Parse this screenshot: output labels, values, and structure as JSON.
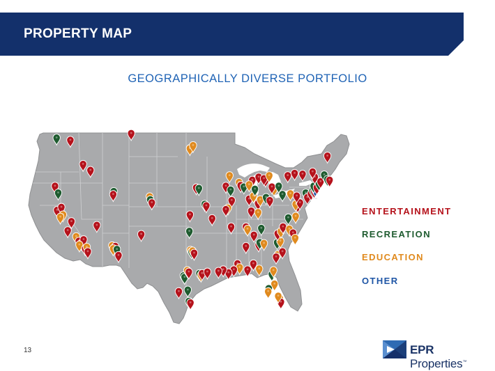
{
  "header": {
    "title": "PROPERTY MAP",
    "bar_color": "#13306b"
  },
  "subtitle": "GEOGRAPHICALLY DIVERSE PORTFOLIO",
  "legend": [
    {
      "label": "ENTERTAINMENT",
      "color": "#b5121b"
    },
    {
      "label": "RECREATION",
      "color": "#1e5b2f"
    },
    {
      "label": "EDUCATION",
      "color": "#e08a1e"
    },
    {
      "label": "OTHER",
      "color": "#1f56a6"
    }
  ],
  "footer": {
    "page_number": "13",
    "logo_brand": "EPR",
    "logo_name": " Properties",
    "logo_tm": "™"
  },
  "map": {
    "land_color": "#a9aaac",
    "pins": [
      {
        "category": "recreation",
        "lon": -122.6,
        "lat": 47.9
      },
      {
        "category": "entertainment",
        "lon": -120.0,
        "lat": 47.6
      },
      {
        "category": "entertainment",
        "lon": -108.5,
        "lat": 48.5
      },
      {
        "category": "entertainment",
        "lon": -117.6,
        "lat": 44.4
      },
      {
        "category": "entertainment",
        "lon": -116.2,
        "lat": 43.6
      },
      {
        "category": "entertainment",
        "lon": -122.9,
        "lat": 41.5
      },
      {
        "category": "recreation",
        "lon": -122.3,
        "lat": 40.6
      },
      {
        "category": "entertainment",
        "lon": -122.5,
        "lat": 38.3
      },
      {
        "category": "entertainment",
        "lon": -121.7,
        "lat": 38.7
      },
      {
        "category": "education",
        "lon": -121.4,
        "lat": 37.7
      },
      {
        "category": "education",
        "lon": -121.9,
        "lat": 37.4
      },
      {
        "category": "entertainment",
        "lon": -119.8,
        "lat": 36.8
      },
      {
        "category": "entertainment",
        "lon": -120.5,
        "lat": 35.6
      },
      {
        "category": "education",
        "lon": -118.9,
        "lat": 34.8
      },
      {
        "category": "entertainment",
        "lon": -118.4,
        "lat": 34.2
      },
      {
        "category": "education",
        "lon": -117.9,
        "lat": 33.9
      },
      {
        "category": "entertainment",
        "lon": -117.5,
        "lat": 34.4
      },
      {
        "category": "education",
        "lon": -118.3,
        "lat": 33.7
      },
      {
        "category": "entertainment",
        "lon": -117.2,
        "lat": 33.2
      },
      {
        "category": "education",
        "lon": -116.9,
        "lat": 33.4
      },
      {
        "category": "entertainment",
        "lon": -116.7,
        "lat": 32.8
      },
      {
        "category": "entertainment",
        "lon": -115.0,
        "lat": 36.3
      },
      {
        "category": "recreation",
        "lon": -111.8,
        "lat": 40.8
      },
      {
        "category": "entertainment",
        "lon": -111.9,
        "lat": 40.4
      },
      {
        "category": "education",
        "lon": -112.1,
        "lat": 33.6
      },
      {
        "category": "entertainment",
        "lon": -111.5,
        "lat": 33.5
      },
      {
        "category": "education",
        "lon": -111.9,
        "lat": 33.2
      },
      {
        "category": "recreation",
        "lon": -111.2,
        "lat": 33.1
      },
      {
        "category": "entertainment",
        "lon": -110.9,
        "lat": 32.3
      },
      {
        "category": "education",
        "lon": -105.0,
        "lat": 40.1
      },
      {
        "category": "recreation",
        "lon": -104.9,
        "lat": 39.7
      },
      {
        "category": "entertainment",
        "lon": -104.6,
        "lat": 39.3
      },
      {
        "category": "entertainment",
        "lon": -106.6,
        "lat": 35.1
      },
      {
        "category": "education",
        "lon": -97.4,
        "lat": 46.5
      },
      {
        "category": "education",
        "lon": -96.8,
        "lat": 46.9
      },
      {
        "category": "entertainment",
        "lon": -96.2,
        "lat": 41.3
      },
      {
        "category": "recreation",
        "lon": -95.7,
        "lat": 41.2
      },
      {
        "category": "recreation",
        "lon": -94.6,
        "lat": 39.1
      },
      {
        "category": "entertainment",
        "lon": -94.3,
        "lat": 38.9
      },
      {
        "category": "recreation",
        "lon": -97.5,
        "lat": 35.5
      },
      {
        "category": "entertainment",
        "lon": -93.2,
        "lat": 37.2
      },
      {
        "category": "entertainment",
        "lon": -97.4,
        "lat": 37.7
      },
      {
        "category": "education",
        "lon": -97.3,
        "lat": 33.0
      },
      {
        "category": "recreation",
        "lon": -97.1,
        "lat": 32.8
      },
      {
        "category": "education",
        "lon": -96.9,
        "lat": 32.9
      },
      {
        "category": "entertainment",
        "lon": -96.6,
        "lat": 32.6
      },
      {
        "category": "recreation",
        "lon": -98.6,
        "lat": 29.6
      },
      {
        "category": "recreation",
        "lon": -98.4,
        "lat": 29.4
      },
      {
        "category": "education",
        "lon": -97.9,
        "lat": 30.3
      },
      {
        "category": "entertainment",
        "lon": -97.6,
        "lat": 30.1
      },
      {
        "category": "recreation",
        "lon": -95.6,
        "lat": 29.9
      },
      {
        "category": "education",
        "lon": -95.3,
        "lat": 29.7
      },
      {
        "category": "entertainment",
        "lon": -95.1,
        "lat": 29.9
      },
      {
        "category": "entertainment",
        "lon": -94.1,
        "lat": 30.1
      },
      {
        "category": "recreation",
        "lon": -97.8,
        "lat": 27.7
      },
      {
        "category": "entertainment",
        "lon": -99.5,
        "lat": 27.5
      },
      {
        "category": "recreation",
        "lon": -97.6,
        "lat": 26.2
      },
      {
        "category": "entertainment",
        "lon": -97.3,
        "lat": 26.0
      },
      {
        "category": "education",
        "lon": -89.9,
        "lat": 42.9
      },
      {
        "category": "entertainment",
        "lon": -90.6,
        "lat": 41.5
      },
      {
        "category": "recreation",
        "lon": -89.7,
        "lat": 41.0
      },
      {
        "category": "education",
        "lon": -88.1,
        "lat": 42.0
      },
      {
        "category": "entertainment",
        "lon": -87.8,
        "lat": 41.6
      },
      {
        "category": "recreation",
        "lon": -87.2,
        "lat": 41.4
      },
      {
        "category": "entertainment",
        "lon": -89.5,
        "lat": 39.6
      },
      {
        "category": "education",
        "lon": -90.2,
        "lat": 38.6
      },
      {
        "category": "entertainment",
        "lon": -90.6,
        "lat": 38.4
      },
      {
        "category": "entertainment",
        "lon": -89.6,
        "lat": 36.1
      },
      {
        "category": "entertainment",
        "lon": -85.6,
        "lat": 42.3
      },
      {
        "category": "education",
        "lon": -86.2,
        "lat": 41.7
      },
      {
        "category": "entertainment",
        "lon": -86.2,
        "lat": 39.8
      },
      {
        "category": "education",
        "lon": -85.4,
        "lat": 40.2
      },
      {
        "category": "recreation",
        "lon": -85.1,
        "lat": 41.1
      },
      {
        "category": "entertainment",
        "lon": -84.4,
        "lat": 42.7
      },
      {
        "category": "entertainment",
        "lon": -83.1,
        "lat": 42.3
      },
      {
        "category": "entertainment",
        "lon": -83.4,
        "lat": 42.5
      },
      {
        "category": "education",
        "lon": -82.4,
        "lat": 42.9
      },
      {
        "category": "entertainment",
        "lon": -84.5,
        "lat": 39.2
      },
      {
        "category": "education",
        "lon": -84.1,
        "lat": 39.7
      },
      {
        "category": "recreation",
        "lon": -83.0,
        "lat": 40.0
      },
      {
        "category": "entertainment",
        "lon": -82.3,
        "lat": 39.6
      },
      {
        "category": "education",
        "lon": -81.5,
        "lat": 41.1
      },
      {
        "category": "entertainment",
        "lon": -81.9,
        "lat": 41.4
      },
      {
        "category": "recreation",
        "lon": -80.6,
        "lat": 41.5
      },
      {
        "category": "entertainment",
        "lon": -85.8,
        "lat": 38.2
      },
      {
        "category": "education",
        "lon": -84.5,
        "lat": 38.0
      },
      {
        "category": "entertainment",
        "lon": -86.8,
        "lat": 36.1
      },
      {
        "category": "education",
        "lon": -86.5,
        "lat": 35.8
      },
      {
        "category": "entertainment",
        "lon": -85.3,
        "lat": 35.0
      },
      {
        "category": "recreation",
        "lon": -83.9,
        "lat": 35.9
      },
      {
        "category": "entertainment",
        "lon": -84.4,
        "lat": 33.7
      },
      {
        "category": "recreation",
        "lon": -84.2,
        "lat": 34.0
      },
      {
        "category": "education",
        "lon": -83.4,
        "lat": 33.9
      },
      {
        "category": "entertainment",
        "lon": -86.8,
        "lat": 33.5
      },
      {
        "category": "entertainment",
        "lon": -88.4,
        "lat": 31.2
      },
      {
        "category": "education",
        "lon": -88.0,
        "lat": 30.7
      },
      {
        "category": "entertainment",
        "lon": -89.1,
        "lat": 30.4
      },
      {
        "category": "entertainment",
        "lon": -90.1,
        "lat": 30.0
      },
      {
        "category": "entertainment",
        "lon": -91.1,
        "lat": 30.4
      },
      {
        "category": "entertainment",
        "lon": -92.0,
        "lat": 30.2
      },
      {
        "category": "entertainment",
        "lon": -86.5,
        "lat": 30.4
      },
      {
        "category": "entertainment",
        "lon": -85.4,
        "lat": 31.2
      },
      {
        "category": "education",
        "lon": -84.3,
        "lat": 30.5
      },
      {
        "category": "recreation",
        "lon": -81.9,
        "lat": 29.8
      },
      {
        "category": "education",
        "lon": -81.6,
        "lat": 30.3
      },
      {
        "category": "education",
        "lon": -81.4,
        "lat": 28.5
      },
      {
        "category": "recreation",
        "lon": -82.5,
        "lat": 27.9
      },
      {
        "category": "education",
        "lon": -82.6,
        "lat": 27.5
      },
      {
        "category": "education",
        "lon": -80.4,
        "lat": 26.6
      },
      {
        "category": "entertainment",
        "lon": -80.2,
        "lat": 26.1
      },
      {
        "category": "education",
        "lon": -80.7,
        "lat": 26.9
      },
      {
        "category": "education",
        "lon": -80.8,
        "lat": 32.4
      },
      {
        "category": "entertainment",
        "lon": -81.1,
        "lat": 32.1
      },
      {
        "category": "entertainment",
        "lon": -79.9,
        "lat": 32.8
      },
      {
        "category": "recreation",
        "lon": -80.9,
        "lat": 34.0
      },
      {
        "category": "education",
        "lon": -80.3,
        "lat": 34.2
      },
      {
        "category": "entertainment",
        "lon": -80.8,
        "lat": 35.2
      },
      {
        "category": "education",
        "lon": -80.2,
        "lat": 35.5
      },
      {
        "category": "entertainment",
        "lon": -79.8,
        "lat": 36.1
      },
      {
        "category": "education",
        "lon": -78.6,
        "lat": 35.8
      },
      {
        "category": "entertainment",
        "lon": -77.9,
        "lat": 35.3
      },
      {
        "category": "education",
        "lon": -77.5,
        "lat": 34.6
      },
      {
        "category": "education",
        "lon": -77.4,
        "lat": 37.5
      },
      {
        "category": "recreation",
        "lon": -78.8,
        "lat": 37.3
      },
      {
        "category": "entertainment",
        "lon": -77.0,
        "lat": 38.9
      },
      {
        "category": "education",
        "lon": -77.4,
        "lat": 39.1
      },
      {
        "category": "entertainment",
        "lon": -76.6,
        "lat": 39.3
      },
      {
        "category": "recreation",
        "lon": -79.9,
        "lat": 40.4
      },
      {
        "category": "education",
        "lon": -78.4,
        "lat": 40.5
      },
      {
        "category": "entertainment",
        "lon": -77.2,
        "lat": 40.2
      },
      {
        "category": "recreation",
        "lon": -75.5,
        "lat": 40.6
      },
      {
        "category": "entertainment",
        "lon": -75.2,
        "lat": 40.0
      },
      {
        "category": "entertainment",
        "lon": -74.5,
        "lat": 40.5
      },
      {
        "category": "recreation",
        "lon": -74.2,
        "lat": 40.9
      },
      {
        "category": "entertainment",
        "lon": -73.9,
        "lat": 40.8
      },
      {
        "category": "other",
        "lon": -73.7,
        "lat": 41.0
      },
      {
        "category": "recreation",
        "lon": -74.0,
        "lat": 41.5
      },
      {
        "category": "entertainment",
        "lon": -73.4,
        "lat": 41.3
      },
      {
        "category": "recreation",
        "lon": -73.0,
        "lat": 41.8
      },
      {
        "category": "entertainment",
        "lon": -72.7,
        "lat": 42.1
      },
      {
        "category": "recreation",
        "lon": -72.0,
        "lat": 43.0
      },
      {
        "category": "recreation",
        "lon": -71.4,
        "lat": 42.4
      },
      {
        "category": "entertainment",
        "lon": -71.0,
        "lat": 42.3
      },
      {
        "category": "entertainment",
        "lon": -77.6,
        "lat": 43.2
      },
      {
        "category": "entertainment",
        "lon": -78.9,
        "lat": 42.9
      },
      {
        "category": "entertainment",
        "lon": -76.1,
        "lat": 43.1
      },
      {
        "category": "entertainment",
        "lon": -73.8,
        "lat": 42.7
      },
      {
        "category": "entertainment",
        "lon": -74.2,
        "lat": 43.4
      },
      {
        "category": "entertainment",
        "lon": -71.4,
        "lat": 45.5
      }
    ]
  }
}
